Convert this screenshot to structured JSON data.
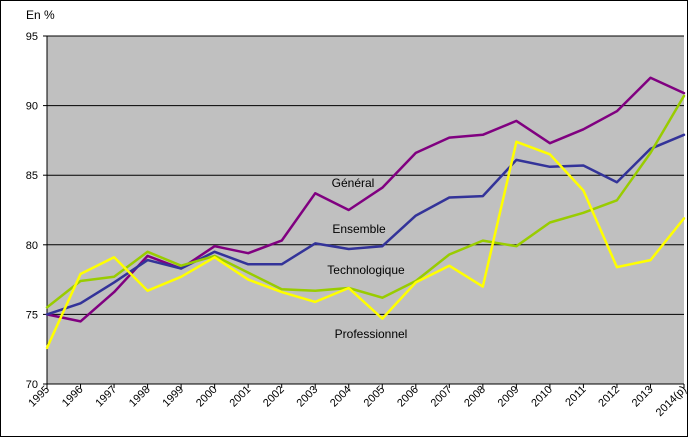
{
  "chart_data": {
    "type": "line",
    "ylabel": "En %",
    "ylim": [
      70,
      95
    ],
    "yticks": [
      70,
      75,
      80,
      85,
      90,
      95
    ],
    "grid": true,
    "plot_background": "#c0c0c0",
    "categories": [
      "1995",
      "1996",
      "1997",
      "1998",
      "1999",
      "2000",
      "2001",
      "2002",
      "2003",
      "2004",
      "2005",
      "2006",
      "2007",
      "2008",
      "2009",
      "2010",
      "2011",
      "2012",
      "2013",
      "2014(p)"
    ],
    "series": [
      {
        "name": "Général",
        "color": "#800080",
        "values": [
          75.0,
          74.5,
          76.6,
          79.2,
          78.3,
          79.9,
          79.4,
          80.3,
          83.7,
          82.5,
          84.1,
          86.6,
          87.7,
          87.9,
          88.9,
          87.3,
          88.3,
          89.6,
          92.0,
          90.9
        ]
      },
      {
        "name": "Ensemble",
        "color": "#333399",
        "values": [
          75.0,
          75.8,
          77.3,
          78.9,
          78.3,
          79.5,
          78.6,
          78.6,
          80.1,
          79.7,
          79.9,
          82.1,
          83.4,
          83.5,
          86.1,
          85.6,
          85.7,
          84.5,
          86.9,
          87.9
        ]
      },
      {
        "name": "Technologique",
        "color": "#99cc00",
        "values": [
          75.5,
          77.4,
          77.7,
          79.5,
          78.5,
          79.2,
          78.0,
          76.8,
          76.7,
          76.9,
          76.2,
          77.4,
          79.3,
          80.3,
          79.9,
          81.6,
          82.3,
          83.2,
          86.6,
          90.7
        ]
      },
      {
        "name": "Professionnel",
        "color": "#ffff00",
        "values": [
          72.6,
          77.9,
          79.1,
          76.7,
          77.7,
          79.1,
          77.5,
          76.6,
          75.9,
          76.9,
          74.7,
          77.3,
          78.5,
          77.0,
          87.4,
          86.5,
          83.9,
          78.4,
          78.9,
          81.9
        ]
      }
    ],
    "annotations": [
      {
        "text": "Général",
        "series": "Général"
      },
      {
        "text": "Ensemble",
        "series": "Ensemble"
      },
      {
        "text": "Technologique",
        "series": "Technologique"
      },
      {
        "text": "Professionnel",
        "series": "Professionnel"
      }
    ]
  }
}
